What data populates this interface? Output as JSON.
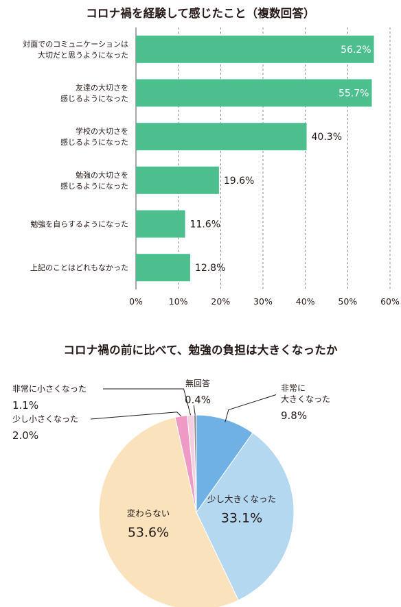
{
  "chart_data": [
    {
      "type": "bar",
      "orientation": "horizontal",
      "title": "コロナ禍を経験して感じたこと（複数回答）",
      "categories": [
        [
          "対面でのコミュニケーションは",
          "大切だと思うようになった"
        ],
        [
          "友達の大切さを",
          "感じるようになった"
        ],
        [
          "学校の大切さを",
          "感じるようになった"
        ],
        [
          "勉強の大切さを",
          "感じるようになった"
        ],
        [
          "勉強を自らするようになった"
        ],
        [
          "上記のことはどれもなかった"
        ]
      ],
      "values": [
        56.2,
        55.7,
        40.3,
        19.6,
        11.6,
        12.8
      ],
      "value_labels": [
        "56.2%",
        "55.7%",
        "40.3%",
        "19.6%",
        "11.6%",
        "12.8%"
      ],
      "xlim": [
        0,
        60
      ],
      "xticks": [
        0,
        10,
        20,
        30,
        40,
        50,
        60
      ],
      "xtick_labels": [
        "0%",
        "10%",
        "20%",
        "30%",
        "40%",
        "50%",
        "60%"
      ],
      "grid": true,
      "bar_color": "#4dbf8f"
    },
    {
      "type": "pie",
      "title": "コロナ禍の前に比べて、勉強の負担は大きくなったか",
      "slices": [
        {
          "label": [
            "非常に",
            "大きくなった"
          ],
          "value": 9.8,
          "value_label": "9.8%",
          "color": "#6fb1e4"
        },
        {
          "label": [
            "少し大きくなった"
          ],
          "value": 33.1,
          "value_label": "33.1%",
          "color": "#b5d8f1"
        },
        {
          "label": [
            "変わらない"
          ],
          "value": 53.6,
          "value_label": "53.6%",
          "color": "#f9e2bc"
        },
        {
          "label": [
            "少し小さくなった"
          ],
          "value": 2.0,
          "value_label": "2.0%",
          "color": "#ee9ac4"
        },
        {
          "label": [
            "非常に小さくなった"
          ],
          "value": 1.1,
          "value_label": "1.1%",
          "color": "#f5cfdf"
        },
        {
          "label": [
            "無回答"
          ],
          "value": 0.4,
          "value_label": "0.4%",
          "color": "#8c8c8c"
        }
      ]
    }
  ]
}
